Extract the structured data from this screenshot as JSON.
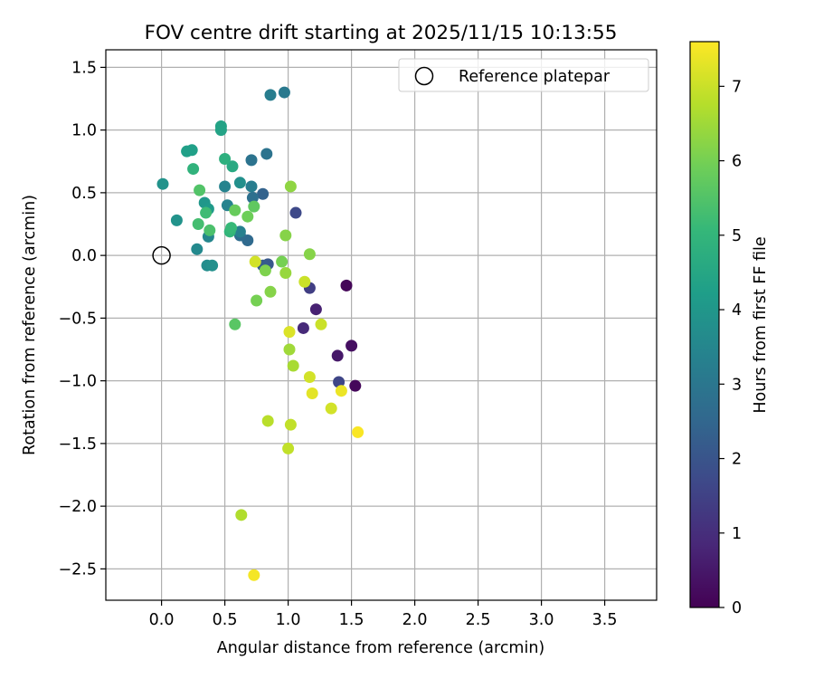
{
  "chart_data": {
    "type": "scatter",
    "title": "FOV centre drift starting at 2025/11/15 10:13:55",
    "xlabel": "Angular distance from reference (arcmin)",
    "ylabel": "Rotation from reference (arcmin)",
    "xlim": [
      -0.44,
      3.91
    ],
    "ylim": [
      -2.75,
      1.64
    ],
    "xticks": [
      0.0,
      0.5,
      1.0,
      1.5,
      2.0,
      2.5,
      3.0,
      3.5
    ],
    "xtick_labels": [
      "0.0",
      "0.5",
      "1.0",
      "1.5",
      "2.0",
      "2.5",
      "3.0",
      "3.5"
    ],
    "yticks": [
      1.5,
      1.0,
      0.5,
      0.0,
      -0.5,
      -1.0,
      -1.5,
      -2.0,
      -2.5
    ],
    "ytick_labels": [
      "1.5",
      "1.0",
      "0.5",
      "0.0",
      "−0.5",
      "−1.0",
      "−1.5",
      "−2.0",
      "−2.5"
    ],
    "grid": true,
    "legend": {
      "position": "top-right",
      "label": "Reference platepar"
    },
    "reference_point": {
      "x": 0.0,
      "y": 0.0
    },
    "colorbar": {
      "label": "Hours from first FF file",
      "range": [
        0,
        7.6
      ],
      "ticks": [
        0,
        1,
        2,
        3,
        4,
        5,
        6,
        7
      ],
      "tick_labels": [
        "0",
        "1",
        "2",
        "3",
        "4",
        "5",
        "6",
        "7"
      ]
    },
    "points": [
      {
        "x": 1.46,
        "y": -0.24,
        "t": 0.1
      },
      {
        "x": 1.53,
        "y": -1.04,
        "t": 0.15
      },
      {
        "x": 1.5,
        "y": -0.72,
        "t": 0.3
      },
      {
        "x": 1.39,
        "y": -0.8,
        "t": 0.5
      },
      {
        "x": 1.22,
        "y": -0.43,
        "t": 0.7
      },
      {
        "x": 1.12,
        "y": -0.58,
        "t": 0.9
      },
      {
        "x": 1.17,
        "y": -0.26,
        "t": 1.4
      },
      {
        "x": 1.4,
        "y": -1.01,
        "t": 1.6
      },
      {
        "x": 1.06,
        "y": 0.34,
        "t": 1.7
      },
      {
        "x": 0.84,
        "y": -0.07,
        "t": 2.1
      },
      {
        "x": 0.8,
        "y": -0.08,
        "t": 2.2
      },
      {
        "x": 0.8,
        "y": 0.49,
        "t": 2.4
      },
      {
        "x": 0.68,
        "y": 0.12,
        "t": 2.6
      },
      {
        "x": 0.62,
        "y": 0.16,
        "t": 2.7
      },
      {
        "x": 0.72,
        "y": 0.46,
        "t": 2.8
      },
      {
        "x": 0.83,
        "y": 0.81,
        "t": 2.9
      },
      {
        "x": 0.71,
        "y": 0.76,
        "t": 2.9
      },
      {
        "x": 0.97,
        "y": 1.3,
        "t": 3.1
      },
      {
        "x": 0.86,
        "y": 1.28,
        "t": 3.2
      },
      {
        "x": 0.71,
        "y": 0.55,
        "t": 3.2
      },
      {
        "x": 0.62,
        "y": 0.19,
        "t": 3.3
      },
      {
        "x": 0.52,
        "y": 0.4,
        "t": 3.4
      },
      {
        "x": 0.5,
        "y": 0.55,
        "t": 3.4
      },
      {
        "x": 0.37,
        "y": 0.15,
        "t": 3.5
      },
      {
        "x": 0.28,
        "y": 0.05,
        "t": 3.6
      },
      {
        "x": 0.36,
        "y": -0.08,
        "t": 3.7
      },
      {
        "x": 0.4,
        "y": -0.08,
        "t": 3.8
      },
      {
        "x": 0.62,
        "y": 0.58,
        "t": 3.8
      },
      {
        "x": 0.12,
        "y": 0.28,
        "t": 3.9
      },
      {
        "x": 0.01,
        "y": 0.57,
        "t": 3.9
      },
      {
        "x": 0.34,
        "y": 0.42,
        "t": 4.0
      },
      {
        "x": 0.37,
        "y": 0.37,
        "t": 4.1
      },
      {
        "x": 0.2,
        "y": 0.83,
        "t": 4.3
      },
      {
        "x": 0.24,
        "y": 0.84,
        "t": 4.3
      },
      {
        "x": 0.47,
        "y": 1.03,
        "t": 4.4
      },
      {
        "x": 0.47,
        "y": 1.0,
        "t": 4.4
      },
      {
        "x": 0.56,
        "y": 0.71,
        "t": 4.6
      },
      {
        "x": 0.5,
        "y": 0.77,
        "t": 4.8
      },
      {
        "x": 0.25,
        "y": 0.69,
        "t": 4.9
      },
      {
        "x": 0.54,
        "y": 0.19,
        "t": 5.0
      },
      {
        "x": 0.55,
        "y": 0.22,
        "t": 5.1
      },
      {
        "x": 0.35,
        "y": 0.34,
        "t": 5.2
      },
      {
        "x": 0.29,
        "y": 0.25,
        "t": 5.3
      },
      {
        "x": 0.38,
        "y": 0.2,
        "t": 5.4
      },
      {
        "x": 0.3,
        "y": 0.52,
        "t": 5.5
      },
      {
        "x": 0.58,
        "y": -0.55,
        "t": 5.6
      },
      {
        "x": 0.73,
        "y": 0.39,
        "t": 5.7
      },
      {
        "x": 0.58,
        "y": 0.36,
        "t": 5.8
      },
      {
        "x": 0.68,
        "y": 0.31,
        "t": 5.9
      },
      {
        "x": 0.75,
        "y": -0.36,
        "t": 6.0
      },
      {
        "x": 0.95,
        "y": -0.05,
        "t": 6.0
      },
      {
        "x": 0.82,
        "y": -0.12,
        "t": 6.1
      },
      {
        "x": 0.86,
        "y": -0.29,
        "t": 6.2
      },
      {
        "x": 0.98,
        "y": 0.16,
        "t": 6.2
      },
      {
        "x": 1.17,
        "y": 0.01,
        "t": 6.2
      },
      {
        "x": 1.02,
        "y": 0.55,
        "t": 6.3
      },
      {
        "x": 0.98,
        "y": -0.14,
        "t": 6.4
      },
      {
        "x": 1.01,
        "y": -0.75,
        "t": 6.5
      },
      {
        "x": 1.04,
        "y": -0.88,
        "t": 6.6
      },
      {
        "x": 0.63,
        "y": -2.07,
        "t": 6.7
      },
      {
        "x": 0.84,
        "y": -1.32,
        "t": 6.8
      },
      {
        "x": 1.0,
        "y": -1.54,
        "t": 6.9
      },
      {
        "x": 1.02,
        "y": -1.35,
        "t": 6.9
      },
      {
        "x": 1.13,
        "y": -0.21,
        "t": 7.0
      },
      {
        "x": 1.26,
        "y": -0.55,
        "t": 7.0
      },
      {
        "x": 1.17,
        "y": -0.97,
        "t": 7.1
      },
      {
        "x": 1.34,
        "y": -1.22,
        "t": 7.1
      },
      {
        "x": 0.74,
        "y": -0.05,
        "t": 7.1
      },
      {
        "x": 1.01,
        "y": -0.61,
        "t": 7.2
      },
      {
        "x": 1.19,
        "y": -1.1,
        "t": 7.3
      },
      {
        "x": 1.42,
        "y": -1.08,
        "t": 7.4
      },
      {
        "x": 0.73,
        "y": -2.55,
        "t": 7.5
      },
      {
        "x": 1.55,
        "y": -1.41,
        "t": 7.55
      }
    ]
  }
}
